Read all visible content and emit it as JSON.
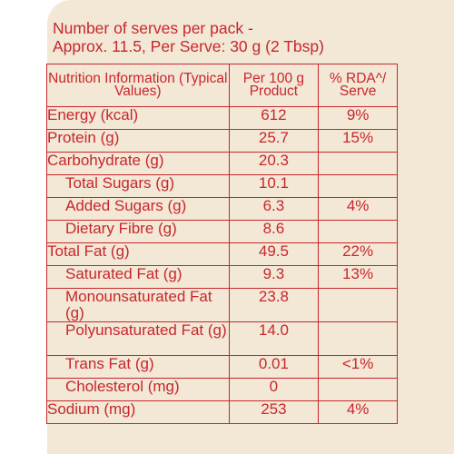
{
  "serves_line1": "Number of serves per pack -",
  "serves_line2": "Approx. 11.5, Per Serve: 30 g (2 Tbsp)",
  "header": {
    "col1": "Nutrition Information (Typical Values)",
    "col2": "Per 100 g Product",
    "col3": "% RDA^/ Serve"
  },
  "rows": [
    {
      "name": "Energy (kcal)",
      "per100": "612",
      "rda": "9%"
    },
    {
      "name": "Protein (g)",
      "per100": "25.7",
      "rda": "15%"
    },
    {
      "name": "Carbohydrate (g)",
      "per100": "20.3",
      "rda": ""
    },
    {
      "name": "Total Sugars (g)",
      "per100": "10.1",
      "rda": ""
    },
    {
      "name": "Added Sugars (g)",
      "per100": "6.3",
      "rda": "4%"
    },
    {
      "name": "Dietary Fibre (g)",
      "per100": "8.6",
      "rda": ""
    },
    {
      "name": "Total Fat (g)",
      "per100": "49.5",
      "rda": "22%"
    },
    {
      "name": "Saturated Fat (g)",
      "per100": "9.3",
      "rda": "13%"
    },
    {
      "name": "Monounsaturated Fat (g)",
      "per100": "23.8",
      "rda": ""
    },
    {
      "name": "Polyunsaturated Fat (g)",
      "per100": "14.0",
      "rda": ""
    },
    {
      "name": "Trans Fat (g)",
      "per100": "0.01",
      "rda": "<1%"
    },
    {
      "name": "Cholesterol (mg)",
      "per100": "0",
      "rda": ""
    },
    {
      "name": "Sodium (mg)",
      "per100": "253",
      "rda": "4%"
    }
  ],
  "colors": {
    "text": "#c8272c",
    "panel": "#f3e7d6",
    "page": "#ffffff"
  }
}
